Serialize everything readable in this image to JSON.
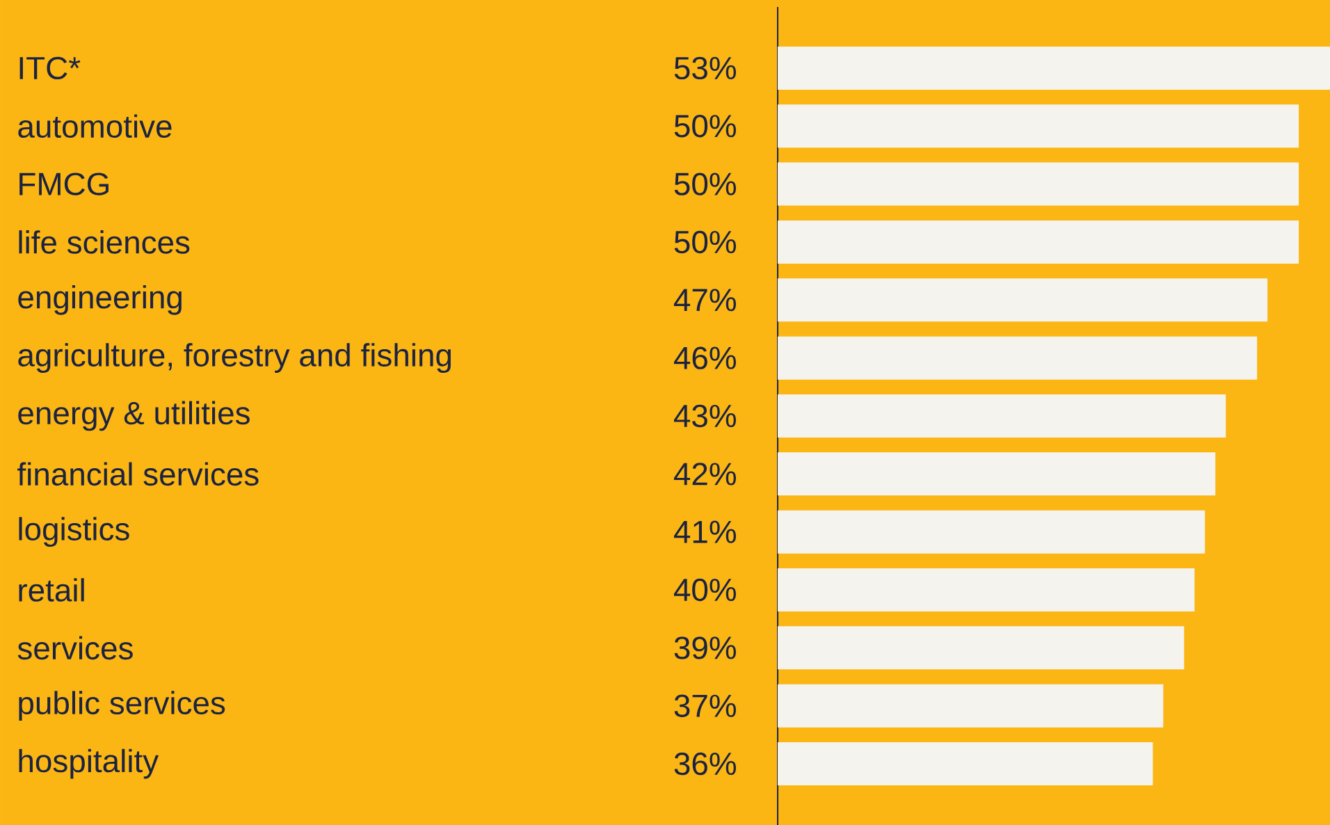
{
  "chart_data": {
    "type": "bar",
    "orientation": "horizontal",
    "color": "#f5f3ee",
    "categories": [
      "ITC*",
      "automotive",
      "FMCG",
      "life sciences",
      "engineering",
      "agriculture, forestry and fishing",
      "energy & utilities",
      "financial services",
      "logistics",
      "retail",
      "services",
      "public services",
      "hospitality"
    ],
    "values": [
      53,
      50,
      50,
      50,
      47,
      46,
      43,
      42,
      41,
      40,
      39,
      37,
      36
    ],
    "value_labels": [
      "53%",
      "50%",
      "50%",
      "50%",
      "47%",
      "46%",
      "43%",
      "42%",
      "41%",
      "40%",
      "39%",
      "37%",
      "36%"
    ]
  }
}
